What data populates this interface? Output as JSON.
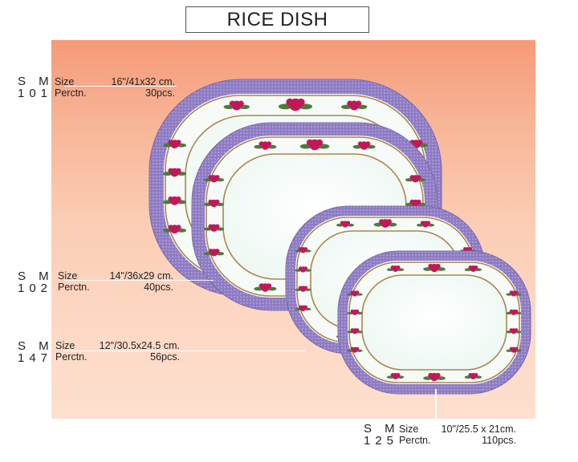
{
  "title": "RICE DISH",
  "colors": {
    "rim": "#8e7cc3",
    "rim_dots": "#c9b8ea",
    "well": "#eef8f3",
    "band": "#f7fbf8",
    "roses": "#c2185b",
    "leaves": "#4f7a3a",
    "gold": "#a8874f"
  },
  "products": [
    {
      "code_line1": "S M",
      "code_line2": "101",
      "size_label": "Size",
      "size_value": "16\"/41x32 cm.",
      "perctn_label": "Perctn.",
      "perctn_value": "30pcs."
    },
    {
      "code_line1": "S M",
      "code_line2": "102",
      "size_label": "Size",
      "size_value": "14\"/36x29 cm.",
      "perctn_label": "Perctn.",
      "perctn_value": "40pcs."
    },
    {
      "code_line1": "S M",
      "code_line2": "147",
      "size_label": "Size",
      "size_value": "12\"/30.5x24.5 cm.",
      "perctn_label": "Perctn.",
      "perctn_value": "56pcs."
    },
    {
      "code_line1": "S M",
      "code_line2": "125",
      "size_label": "Size",
      "size_value": "10\"/25.5 x 21cm.",
      "perctn_label": "Perctn.",
      "perctn_value": "110pcs."
    }
  ]
}
